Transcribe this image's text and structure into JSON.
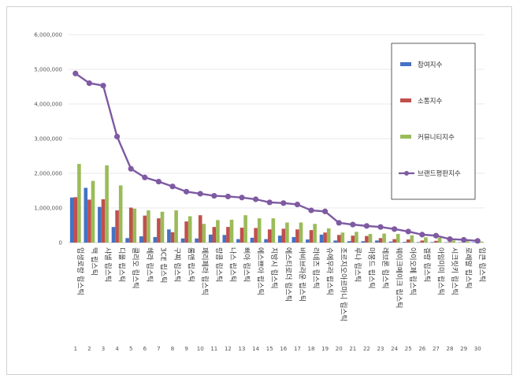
{
  "chart_data": {
    "type": "bar",
    "ylim": [
      0,
      6000000
    ],
    "yticks": [
      0,
      1000000,
      2000000,
      3000000,
      4000000,
      5000000,
      6000000
    ],
    "ytick_labels": [
      "0",
      "1,000,000",
      "2,000,000",
      "3,000,000",
      "4,000,000",
      "5,000,000",
      "6,000,000"
    ],
    "grid": true,
    "legend_position": "right",
    "ranks": [
      "1",
      "2",
      "3",
      "4",
      "5",
      "6",
      "7",
      "8",
      "9",
      "10",
      "11",
      "12",
      "13",
      "14",
      "15",
      "16",
      "17",
      "18",
      "19",
      "20",
      "21",
      "22",
      "23",
      "24",
      "25",
      "26",
      "27",
      "28",
      "29",
      "30"
    ],
    "categories": [
      "입생로랑 립스틱",
      "맥 립스틱",
      "샤넬 립스틱",
      "디올 립스틱",
      "클리오 립스틱",
      "헤라 립스틱",
      "3CE 립스틱",
      "구찌 립스틱",
      "롬앤 립스틱",
      "페리페라 립스틱",
      "랑콤 립스틱",
      "나스 립스틱",
      "삐아 립스틱",
      "에스쁘아 립스틱",
      "지방시 립스틱",
      "에스티로더 립스틱",
      "바비브라운 립스틱",
      "라네즈 립스틱",
      "슈에무라 립스틱",
      "조르지오아르마니 립스틱",
      "루나 립스틱",
      "마몽드 립스틱",
      "레브론 립스틱",
      "웨이크메이크 립스틱",
      "아이오페 립스틱",
      "겔랑 립스틱",
      "아임미미 립스틱",
      "시크릿키 립스틱",
      "로레알 립스틱",
      "입큰 립스틱"
    ],
    "series": [
      {
        "name": "참여지수",
        "color": "#4472c4",
        "values": [
          1300000,
          1580000,
          1030000,
          450000,
          130000,
          180000,
          160000,
          380000,
          120000,
          120000,
          230000,
          220000,
          100000,
          140000,
          100000,
          200000,
          160000,
          90000,
          230000,
          60000,
          40000,
          40000,
          60000,
          30000,
          20000,
          15000,
          15000,
          10000,
          10000,
          10000
        ]
      },
      {
        "name": "소통지수",
        "color": "#c0504d",
        "values": [
          1310000,
          1240000,
          1250000,
          930000,
          1010000,
          780000,
          700000,
          300000,
          610000,
          790000,
          450000,
          450000,
          430000,
          420000,
          380000,
          400000,
          380000,
          360000,
          290000,
          220000,
          200000,
          190000,
          130000,
          100000,
          90000,
          60000,
          50000,
          15000,
          10000,
          10000
        ]
      },
      {
        "name": "커뮤니티지수",
        "color": "#9bbb59",
        "values": [
          2270000,
          1780000,
          2230000,
          1650000,
          980000,
          930000,
          890000,
          930000,
          760000,
          540000,
          650000,
          660000,
          790000,
          700000,
          700000,
          580000,
          580000,
          540000,
          410000,
          290000,
          310000,
          250000,
          260000,
          250000,
          210000,
          150000,
          140000,
          60000,
          40000,
          30000
        ]
      },
      {
        "name": "브랜드평판지수",
        "color": "#7e5aa2",
        "values": [
          4880000,
          4600000,
          4530000,
          3060000,
          2130000,
          1880000,
          1760000,
          1620000,
          1470000,
          1410000,
          1350000,
          1330000,
          1300000,
          1250000,
          1160000,
          1140000,
          1100000,
          930000,
          900000,
          570000,
          520000,
          480000,
          450000,
          390000,
          320000,
          230000,
          200000,
          100000,
          80000,
          50000
        ]
      }
    ]
  }
}
